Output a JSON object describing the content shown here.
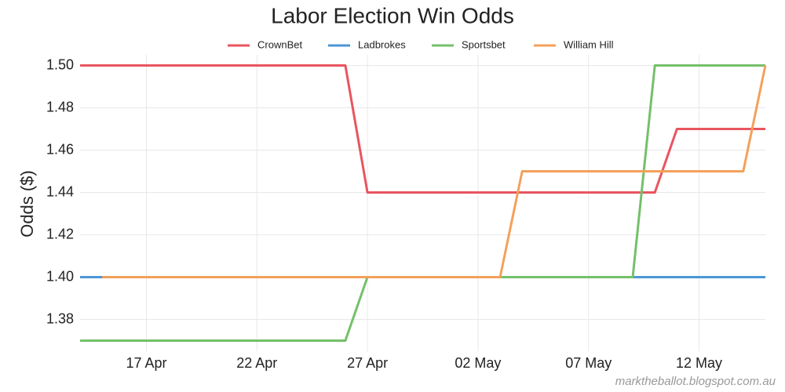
{
  "chart_data": {
    "type": "line",
    "title": "Labor Election Win Odds",
    "y_label": "Odds ($)",
    "source": "marktheballot.blogspot.com.au",
    "x": [
      "14 Apr",
      "15 Apr",
      "16 Apr",
      "17 Apr",
      "18 Apr",
      "19 Apr",
      "20 Apr",
      "21 Apr",
      "22 Apr",
      "23 Apr",
      "24 Apr",
      "25 Apr",
      "26 Apr",
      "27 Apr",
      "28 Apr",
      "29 Apr",
      "30 Apr",
      "01 May",
      "02 May",
      "03 May",
      "04 May",
      "05 May",
      "06 May",
      "07 May",
      "08 May",
      "09 May",
      "10 May",
      "11 May",
      "12 May",
      "13 May",
      "14 May",
      "15 May"
    ],
    "xticks": [
      "17 Apr",
      "22 Apr",
      "27 Apr",
      "02 May",
      "07 May",
      "12 May"
    ],
    "ylim": [
      1.365,
      1.505
    ],
    "yticks": [
      {
        "value": 1.4,
        "label": "1.40"
      },
      1.38,
      1.42,
      1.44,
      1.46,
      1.48,
      {
        "value": 1.5,
        "label": "1.50"
      }
    ],
    "grid": true,
    "legend": "top",
    "series": [
      {
        "name": "CrownBet",
        "color": "#e8555f",
        "values": [
          1.5,
          1.5,
          1.5,
          1.5,
          1.5,
          1.5,
          1.5,
          1.5,
          1.5,
          1.5,
          1.5,
          1.5,
          1.5,
          1.44,
          1.44,
          1.44,
          1.44,
          1.44,
          1.44,
          1.44,
          1.44,
          1.44,
          1.44,
          1.44,
          1.44,
          1.44,
          1.44,
          1.47,
          1.47,
          1.47,
          1.47,
          1.47
        ]
      },
      {
        "name": "Ladbrokes",
        "color": "#4c96d7",
        "values": [
          1.4,
          1.4,
          1.4,
          1.4,
          1.4,
          1.4,
          1.4,
          1.4,
          1.4,
          1.4,
          1.4,
          1.4,
          1.4,
          1.4,
          1.4,
          1.4,
          1.4,
          1.4,
          1.4,
          1.4,
          1.4,
          1.4,
          1.4,
          1.4,
          1.4,
          1.4,
          1.4,
          1.4,
          1.4,
          1.4,
          1.4,
          1.4
        ]
      },
      {
        "name": "Sportsbet",
        "color": "#74c06a",
        "values": [
          1.37,
          1.37,
          1.37,
          1.37,
          1.37,
          1.37,
          1.37,
          1.37,
          1.37,
          1.37,
          1.37,
          1.37,
          1.37,
          1.4,
          1.4,
          1.4,
          1.4,
          1.4,
          1.4,
          1.4,
          1.4,
          1.4,
          1.4,
          1.4,
          1.4,
          1.4,
          1.5,
          1.5,
          1.5,
          1.5,
          1.5,
          1.5
        ]
      },
      {
        "name": "William Hill",
        "color": "#f4a05a",
        "values": [
          null,
          1.4,
          1.4,
          1.4,
          1.4,
          1.4,
          1.4,
          1.4,
          1.4,
          1.4,
          1.4,
          1.4,
          1.4,
          1.4,
          1.4,
          1.4,
          1.4,
          1.4,
          1.4,
          1.4,
          1.45,
          1.45,
          1.45,
          1.45,
          1.45,
          1.45,
          1.45,
          1.45,
          1.45,
          1.45,
          1.45,
          1.5
        ]
      }
    ]
  }
}
